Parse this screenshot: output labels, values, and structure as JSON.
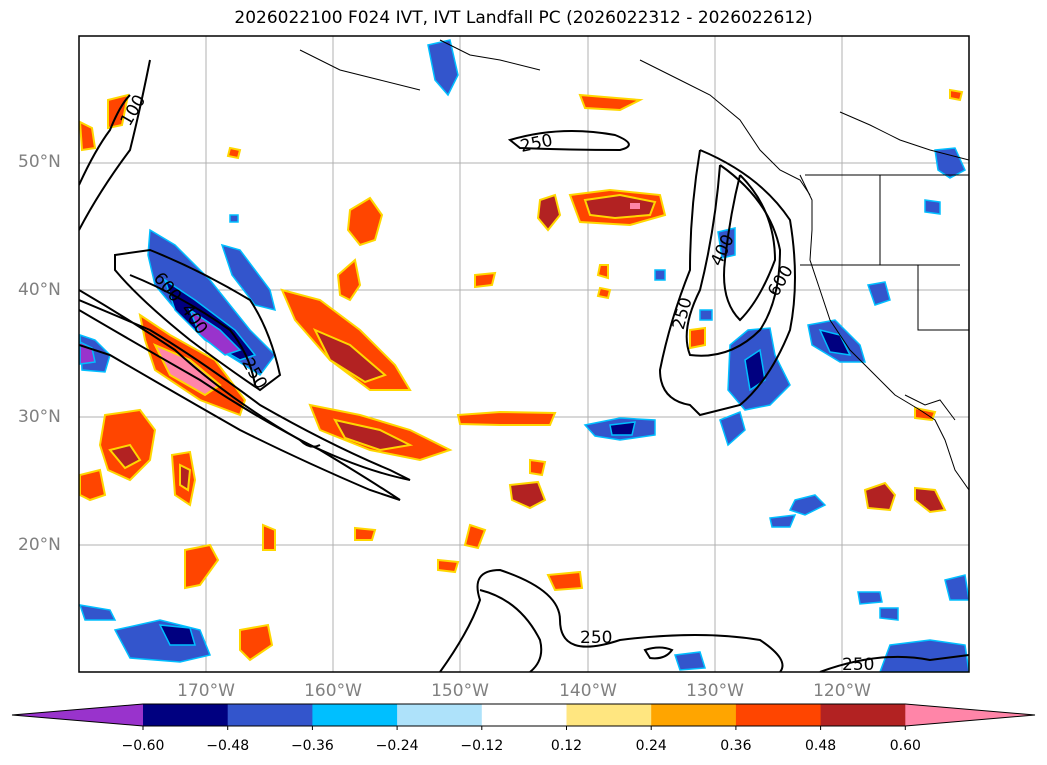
{
  "title": "2026022100 F024 IVT, IVT Landfall PC (2026022312 - 2026022612)",
  "lat_labels": [
    "50°N",
    "40°N",
    "30°N",
    "20°N"
  ],
  "lon_labels": [
    "170°W",
    "160°W",
    "150°W",
    "140°W",
    "130°W",
    "120°W"
  ],
  "contour_labels": [
    "100",
    "250",
    "400",
    "600",
    "250",
    "600",
    "250",
    "400",
    "250",
    "250"
  ],
  "colorbar": {
    "ticks": [
      "−0.60",
      "−0.48",
      "−0.36",
      "−0.24",
      "−0.12",
      "0.12",
      "0.24",
      "0.36",
      "0.48",
      "0.60"
    ],
    "colors": [
      "#9933cc",
      "#000080",
      "#3355cc",
      "#00bfff",
      "#aee2fa",
      "#ffffff",
      "#ffe680",
      "#ffa500",
      "#ff4500",
      "#b22222",
      "#ff85a8"
    ]
  }
}
